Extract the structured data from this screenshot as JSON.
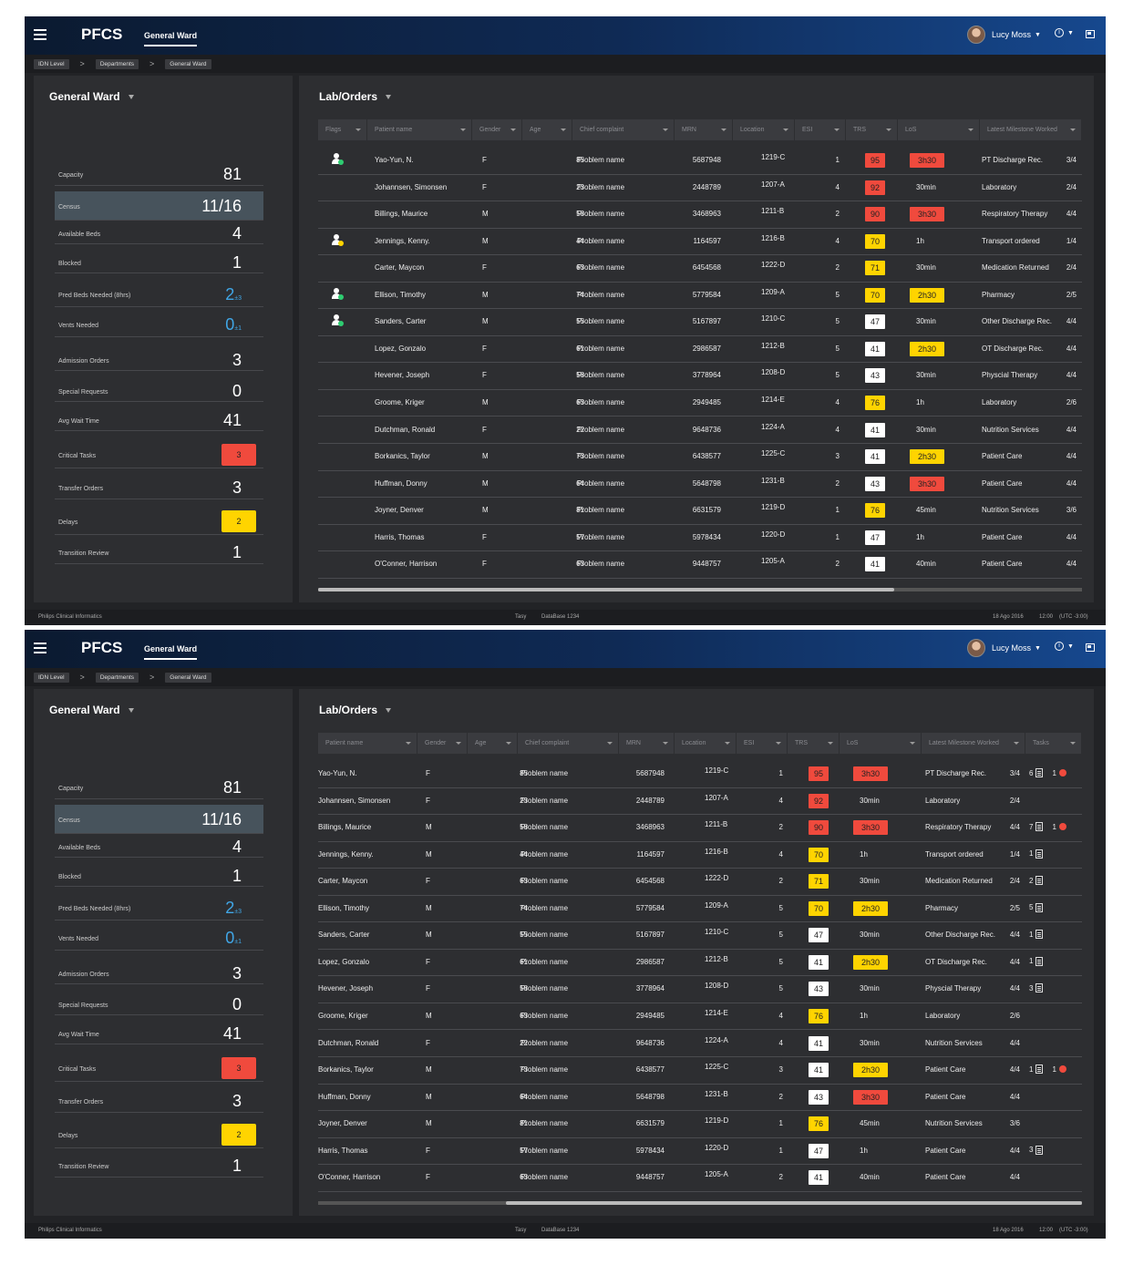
{
  "app": {
    "name": "PFCS",
    "ward_tab": "General Ward",
    "user": "Lucy Moss",
    "info_label": "i"
  },
  "breadcrumbs": [
    "IDN Level",
    "Departments",
    "General Ward"
  ],
  "left": {
    "title": "General Ward",
    "stats": [
      {
        "label": "Capacity",
        "value": "81"
      },
      {
        "label": "Census",
        "value": "11/16"
      },
      {
        "label": "Available Beds",
        "value": "4"
      },
      {
        "label": "Blocked",
        "value": "1"
      },
      {
        "label": "Pred Beds Needed (8hrs)",
        "value": "2",
        "sub": "±3"
      },
      {
        "label": "Vents Needed",
        "value": "0",
        "sub": "±1"
      },
      {
        "label": "Admission Orders",
        "value": "3"
      },
      {
        "label": "Special Requests",
        "value": "0"
      },
      {
        "label": "Avg Wait Time",
        "value": "41"
      },
      {
        "label": "Critical Tasks",
        "value": "3"
      },
      {
        "label": "Transfer Orders",
        "value": "3"
      },
      {
        "label": "Delays",
        "value": "2"
      },
      {
        "label": "Transition Review",
        "value": "1"
      }
    ]
  },
  "right": {
    "title": "Lab/Orders",
    "headers_a": [
      "Flags",
      "Patient name",
      "Gender",
      "Age",
      "Chief complaint",
      "MRN",
      "Location",
      "ESI",
      "TRS",
      "LoS",
      "Latest Milestone Worked"
    ],
    "headers_b": [
      "Patient name",
      "Gender",
      "Age",
      "Chief complaint",
      "MRN",
      "Location",
      "ESI",
      "TRS",
      "LoS",
      "Latest Milestone Worked",
      "Tasks"
    ],
    "patients": [
      {
        "flag": "green",
        "name": "Yao-Yun, N.",
        "gender": "F",
        "age": "85",
        "complaint": "Problem name",
        "mrn": "5687948",
        "loc": "1219-C",
        "esi": "1",
        "trs": "95",
        "trs_c": "red",
        "los": "3h30",
        "los_c": "red",
        "milestone": "PT Discharge Rec.",
        "ms_count": "3/4",
        "tasks": "6",
        "alerts": "1"
      },
      {
        "flag": "",
        "name": "Johannsen, Simonsen",
        "gender": "F",
        "age": "23",
        "complaint": "Problem name",
        "mrn": "2448789",
        "loc": "1207-A",
        "esi": "4",
        "trs": "92",
        "trs_c": "red",
        "los": "30min",
        "los_c": "",
        "milestone": "Laboratory",
        "ms_count": "2/4",
        "tasks": "",
        "alerts": ""
      },
      {
        "flag": "",
        "name": "Billings, Maurice",
        "gender": "M",
        "age": "58",
        "complaint": "Problem name",
        "mrn": "3468963",
        "loc": "1211-B",
        "esi": "2",
        "trs": "90",
        "trs_c": "red",
        "los": "3h30",
        "los_c": "red",
        "milestone": "Respiratory Therapy",
        "ms_count": "4/4",
        "tasks": "7",
        "alerts": "1"
      },
      {
        "flag": "yellow",
        "name": "Jennings, Kenny.",
        "gender": "M",
        "age": "44",
        "complaint": "Problem name",
        "mrn": "1164597",
        "loc": "1216-B",
        "esi": "4",
        "trs": "70",
        "trs_c": "yel",
        "los": "1h",
        "los_c": "",
        "milestone": "Transport ordered",
        "ms_count": "1/4",
        "tasks": "1",
        "alerts": ""
      },
      {
        "flag": "",
        "name": "Carter, Maycon",
        "gender": "F",
        "age": "63",
        "complaint": "Problem name",
        "mrn": "6454568",
        "loc": "1222-D",
        "esi": "2",
        "trs": "71",
        "trs_c": "yel",
        "los": "30min",
        "los_c": "",
        "milestone": "Medication Returned",
        "ms_count": "2/4",
        "tasks": "2",
        "alerts": ""
      },
      {
        "flag": "green",
        "name": "Ellison, Timothy",
        "gender": "M",
        "age": "74",
        "complaint": "Problem name",
        "mrn": "5779584",
        "loc": "1209-A",
        "esi": "5",
        "trs": "70",
        "trs_c": "yel",
        "los": "2h30",
        "los_c": "yel",
        "milestone": "Pharmacy",
        "ms_count": "2/5",
        "tasks": "5",
        "alerts": ""
      },
      {
        "flag": "green",
        "name": "Sanders, Carter",
        "gender": "M",
        "age": "55",
        "complaint": "Problem name",
        "mrn": "5167897",
        "loc": "1210-C",
        "esi": "5",
        "trs": "47",
        "trs_c": "wht",
        "los": "30min",
        "los_c": "",
        "milestone": "Other Discharge Rec.",
        "ms_count": "4/4",
        "tasks": "1",
        "alerts": ""
      },
      {
        "flag": "",
        "name": "Lopez, Gonzalo",
        "gender": "F",
        "age": "61",
        "complaint": "Problem name",
        "mrn": "2986587",
        "loc": "1212-B",
        "esi": "5",
        "trs": "41",
        "trs_c": "wht",
        "los": "2h30",
        "los_c": "yel",
        "milestone": "OT Discharge Rec.",
        "ms_count": "4/4",
        "tasks": "1",
        "alerts": ""
      },
      {
        "flag": "",
        "name": "Hevener, Joseph",
        "gender": "F",
        "age": "58",
        "complaint": "Problem name",
        "mrn": "3778964",
        "loc": "1208-D",
        "esi": "5",
        "trs": "43",
        "trs_c": "wht",
        "los": "30min",
        "los_c": "",
        "milestone": "Physcial Therapy",
        "ms_count": "4/4",
        "tasks": "3",
        "alerts": ""
      },
      {
        "flag": "",
        "name": "Groome, Kriger",
        "gender": "M",
        "age": "63",
        "complaint": "Problem name",
        "mrn": "2949485",
        "loc": "1214-E",
        "esi": "4",
        "trs": "76",
        "trs_c": "yel",
        "los": "1h",
        "los_c": "",
        "milestone": "Laboratory",
        "ms_count": "2/6",
        "tasks": "",
        "alerts": ""
      },
      {
        "flag": "",
        "name": "Dutchman, Ronald",
        "gender": "F",
        "age": "22",
        "complaint": "Problem name",
        "mrn": "9648736",
        "loc": "1224-A",
        "esi": "4",
        "trs": "41",
        "trs_c": "wht",
        "los": "30min",
        "los_c": "",
        "milestone": "Nutrition Services",
        "ms_count": "4/4",
        "tasks": "",
        "alerts": ""
      },
      {
        "flag": "",
        "name": "Borkanics, Taylor",
        "gender": "M",
        "age": "73",
        "complaint": "Problem name",
        "mrn": "6438577",
        "loc": "1225-C",
        "esi": "3",
        "trs": "41",
        "trs_c": "wht",
        "los": "2h30",
        "los_c": "yel",
        "milestone": "Patient Care",
        "ms_count": "4/4",
        "tasks": "1",
        "alerts": "1"
      },
      {
        "flag": "",
        "name": "Huffman, Donny",
        "gender": "M",
        "age": "64",
        "complaint": "Problem name",
        "mrn": "5648798",
        "loc": "1231-B",
        "esi": "2",
        "trs": "43",
        "trs_c": "wht",
        "los": "3h30",
        "los_c": "red",
        "milestone": "Patient Care",
        "ms_count": "4/4",
        "tasks": "",
        "alerts": ""
      },
      {
        "flag": "",
        "name": "Joyner, Denver",
        "gender": "M",
        "age": "81",
        "complaint": "Problem name",
        "mrn": "6631579",
        "loc": "1219-D",
        "esi": "1",
        "trs": "76",
        "trs_c": "yel",
        "los": "45min",
        "los_c": "",
        "milestone": "Nutrition Services",
        "ms_count": "3/6",
        "tasks": "",
        "alerts": ""
      },
      {
        "flag": "",
        "name": "Harris, Thomas",
        "gender": "F",
        "age": "57",
        "complaint": "Problem name",
        "mrn": "5978434",
        "loc": "1220-D",
        "esi": "1",
        "trs": "47",
        "trs_c": "wht",
        "los": "1h",
        "los_c": "",
        "milestone": "Patient Care",
        "ms_count": "4/4",
        "tasks": "3",
        "alerts": ""
      },
      {
        "flag": "",
        "name": "O'Conner, Harrison",
        "gender": "F",
        "age": "63",
        "complaint": "Problem name",
        "mrn": "9448757",
        "loc": "1205-A",
        "esi": "2",
        "trs": "41",
        "trs_c": "wht",
        "los": "40min",
        "los_c": "",
        "milestone": "Patient Care",
        "ms_count": "4/4",
        "tasks": "",
        "alerts": ""
      }
    ]
  },
  "footer": {
    "left": "Philips Clinical Informatics",
    "center1": "Tasy",
    "center2": "DataBase 1234",
    "date": "18 Ago 2016",
    "time": "12:00",
    "tz": "(UTC -3:00)"
  },
  "colors": {
    "red": "#f04a3d",
    "yellow": "#ffd400",
    "blue": "#40a6e6",
    "green": "#2ecc71"
  }
}
